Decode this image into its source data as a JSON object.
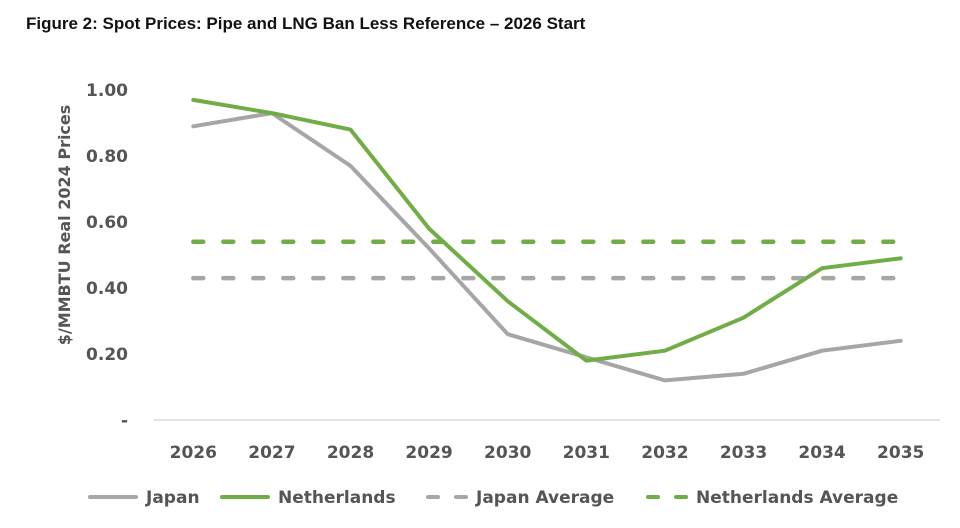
{
  "title": "Figure 2: Spot Prices: Pipe and LNG Ban Less Reference – 2026 Start",
  "chart_data": {
    "type": "line",
    "title": "Figure 2: Spot Prices: Pipe and LNG Ban Less Reference – 2026 Start",
    "xlabel": "",
    "ylabel": "$/MMBTU Real 2024 Prices",
    "ylim": [
      0,
      1.0
    ],
    "yticks": [
      0,
      0.2,
      0.4,
      0.6,
      0.8,
      1.0
    ],
    "ytick_labels": [
      "-",
      "0.20",
      "0.40",
      "0.60",
      "0.80",
      "1.00"
    ],
    "grid": false,
    "legend_position": "bottom",
    "categories": [
      "2026",
      "2027",
      "2028",
      "2029",
      "2030",
      "2031",
      "2032",
      "2033",
      "2034",
      "2035"
    ],
    "series": [
      {
        "name": "Japan",
        "style": "solid",
        "color": "#a6a6a6",
        "values": [
          0.89,
          0.93,
          0.77,
          0.52,
          0.26,
          0.19,
          0.12,
          0.14,
          0.21,
          0.24
        ]
      },
      {
        "name": "Netherlands",
        "style": "solid",
        "color": "#70ad47",
        "values": [
          0.97,
          0.93,
          0.88,
          0.58,
          0.36,
          0.18,
          0.21,
          0.31,
          0.46,
          0.49
        ]
      },
      {
        "name": "Japan Average",
        "style": "dashed",
        "color": "#a6a6a6",
        "values": [
          0.43,
          0.43,
          0.43,
          0.43,
          0.43,
          0.43,
          0.43,
          0.43,
          0.43,
          0.43
        ]
      },
      {
        "name": "Netherlands Average",
        "style": "dashed",
        "color": "#70ad47",
        "values": [
          0.54,
          0.54,
          0.54,
          0.54,
          0.54,
          0.54,
          0.54,
          0.54,
          0.54,
          0.54
        ]
      }
    ]
  }
}
